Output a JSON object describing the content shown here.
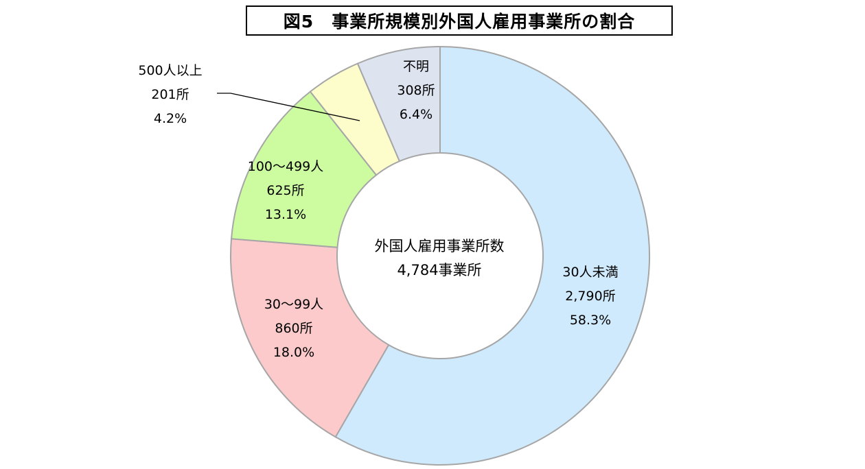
{
  "chart_data": {
    "type": "pie",
    "title": "図5　事業所規模別外国人雇用事業所の割合",
    "center_label": {
      "line1": "外国人雇用事業所数",
      "line2": "4,784事業所"
    },
    "total": 4784,
    "slices": [
      {
        "category": "30人未満",
        "count_label": "2,790所",
        "percent_label": "58.3%",
        "value": 2790,
        "percent": 58.3,
        "color": "#cfeafc"
      },
      {
        "category": "30～99人",
        "count_label": "860所",
        "percent_label": "18.0%",
        "value": 860,
        "percent": 18.0,
        "color": "#fccaca"
      },
      {
        "category": "100～499人",
        "count_label": "625所",
        "percent_label": "13.1%",
        "value": 625,
        "percent": 13.1,
        "color": "#ccfba0"
      },
      {
        "category": "500人以上",
        "count_label": "201所",
        "percent_label": "4.2%",
        "value": 201,
        "percent": 4.2,
        "color": "#fdfccb"
      },
      {
        "category": "不明",
        "count_label": "308所",
        "percent_label": "6.4%",
        "value": 308,
        "percent": 6.4,
        "color": "#dde4f0"
      }
    ],
    "slice_border_color": "#a6a6a6"
  }
}
